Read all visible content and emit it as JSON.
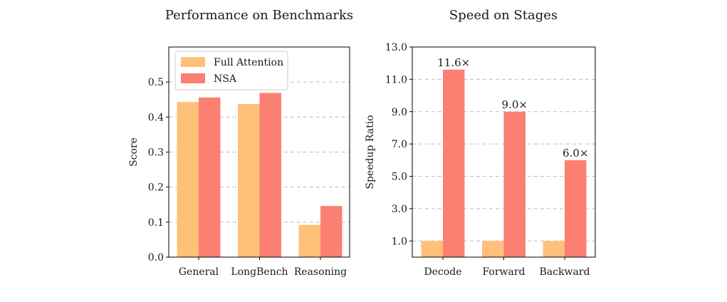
{
  "chart_data": [
    {
      "type": "bar",
      "title": "Performance on Benchmarks",
      "xlabel": "",
      "ylabel": "Score",
      "ylim": [
        0,
        0.6
      ],
      "yticks": [
        "0.0",
        "0.1",
        "0.2",
        "0.3",
        "0.4",
        "0.5"
      ],
      "categories": [
        "General",
        "LongBench",
        "Reasoning"
      ],
      "series": [
        {
          "name": "Full Attention",
          "color": "#FFC07A",
          "values": [
            0.443,
            0.437,
            0.092
          ]
        },
        {
          "name": "NSA",
          "color": "#FB8072",
          "values": [
            0.456,
            0.469,
            0.146
          ]
        }
      ],
      "grid": "horizontal dashed",
      "legend": "top-left"
    },
    {
      "type": "bar",
      "title": "Speed on Stages",
      "xlabel": "",
      "ylabel": "Speedup Ratio",
      "ylim": [
        0,
        13
      ],
      "yticks": [
        "1.0",
        "3.0",
        "5.0",
        "7.0",
        "9.0",
        "11.0",
        "13.0"
      ],
      "categories": [
        "Decode",
        "Forward",
        "Backward"
      ],
      "series": [
        {
          "color": "#FFC07A",
          "values": [
            1.0,
            1.0,
            1.0
          ]
        },
        {
          "color": "#FB8072",
          "values": [
            11.6,
            9.0,
            6.0
          ],
          "labels": [
            "11.6×",
            "9.0×",
            "6.0×"
          ]
        }
      ],
      "grid": "horizontal dashed"
    }
  ]
}
